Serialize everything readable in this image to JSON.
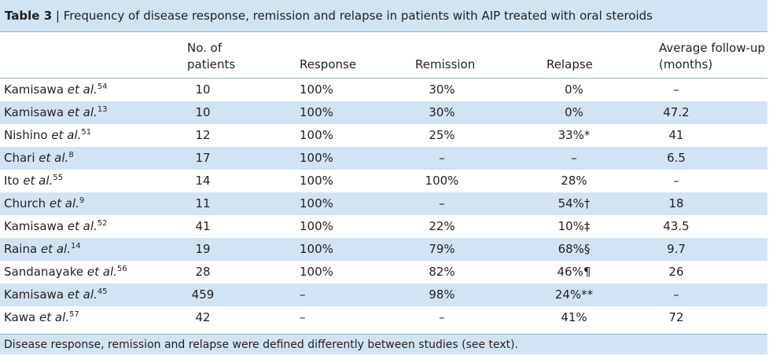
{
  "title": {
    "label": "Table 3",
    "text": "Frequency of disease response, remission and relapse in patients with AIP treated with oral steroids"
  },
  "columns": {
    "study": "",
    "no_line1": "No. of",
    "no_line2": "patients",
    "response": "Response",
    "remission": "Remission",
    "relapse": "Relapse",
    "followup_line1": "Average follow-up",
    "followup_line2": "(months)"
  },
  "rows": [
    {
      "author": "Kamisawa",
      "etal": "et al.",
      "ref": "54",
      "patients": "10",
      "response": "100%",
      "remission": "30%",
      "relapse": "0%",
      "followup": "–"
    },
    {
      "author": "Kamisawa",
      "etal": "et al.",
      "ref": "13",
      "patients": "10",
      "response": "100%",
      "remission": "30%",
      "relapse": "0%",
      "followup": "47.2"
    },
    {
      "author": "Nishino",
      "etal": "et al.",
      "ref": "51",
      "patients": "12",
      "response": "100%",
      "remission": "25%",
      "relapse": "33%*",
      "followup": "41"
    },
    {
      "author": "Chari",
      "etal": "et al.",
      "ref": "8",
      "patients": "17",
      "response": "100%",
      "remission": "–",
      "relapse": "–",
      "followup": "6.5"
    },
    {
      "author": "Ito",
      "etal": "et al.",
      "ref": "55",
      "patients": "14",
      "response": "100%",
      "remission": "100%",
      "relapse": "28%",
      "followup": "–"
    },
    {
      "author": "Church",
      "etal": "et al.",
      "ref": "9",
      "patients": "11",
      "response": "100%",
      "remission": "–",
      "relapse": "54%†",
      "followup": "18"
    },
    {
      "author": "Kamisawa",
      "etal": "et al.",
      "ref": "52",
      "patients": "41",
      "response": "100%",
      "remission": "22%",
      "relapse": "10%‡",
      "followup": "43.5"
    },
    {
      "author": "Raina",
      "etal": "et al.",
      "ref": "14",
      "patients": "19",
      "response": "100%",
      "remission": "79%",
      "relapse": "68%§",
      "followup": "9.7"
    },
    {
      "author": "Sandanayake",
      "etal": "et al.",
      "ref": "56",
      "patients": "28",
      "response": "100%",
      "remission": "82%",
      "relapse": "46%¶",
      "followup": "26"
    },
    {
      "author": "Kamisawa",
      "etal": "et al.",
      "ref": "45",
      "patients": "459",
      "response": "–",
      "remission": "98%",
      "relapse": "24%**",
      "followup": "–"
    },
    {
      "author": "Kawa",
      "etal": "et al.",
      "ref": "57",
      "patients": "42",
      "response": "–",
      "remission": "–",
      "relapse": "41%",
      "followup": "72"
    }
  ],
  "footnote": "Disease response, remission and relapse were defined differently between studies (see text).",
  "colors": {
    "band": "#d2e3f3",
    "rule": "#8fb0cf",
    "text": "#231f20"
  }
}
